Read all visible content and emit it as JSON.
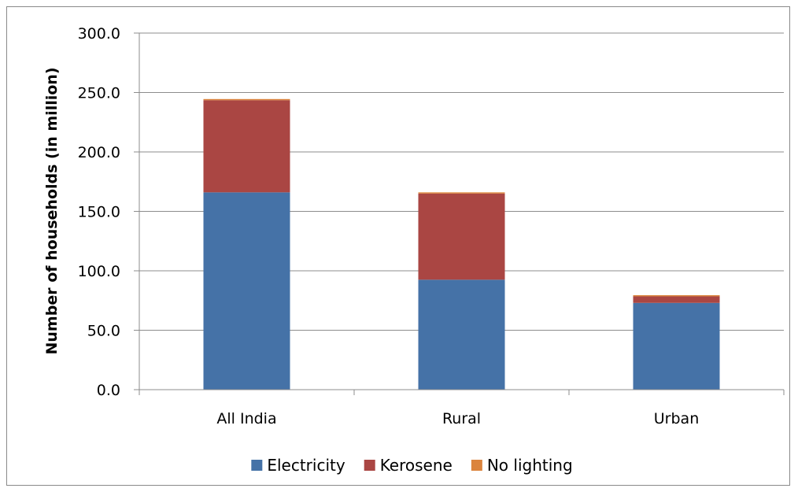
{
  "chart_data": {
    "type": "bar",
    "stacked": true,
    "categories": [
      "All India",
      "Rural",
      "Urban"
    ],
    "series": [
      {
        "name": "Electricity",
        "values": [
          166.0,
          92.5,
          73.0
        ],
        "color": "#4572A7"
      },
      {
        "name": "Kerosene",
        "values": [
          77.5,
          72.5,
          5.5
        ],
        "color": "#AA4643"
      },
      {
        "name": "No lighting",
        "values": [
          1.0,
          1.0,
          1.0
        ],
        "color": "#DB843D"
      }
    ],
    "ylabel": "Number of households (in million)",
    "ylim": [
      0,
      300
    ],
    "yticks": [
      0,
      50,
      100,
      150,
      200,
      250,
      300
    ],
    "ytick_labels": [
      "0.0",
      "50.0",
      "100.0",
      "150.0",
      "200.0",
      "250.0",
      "300.0"
    ],
    "grid": true,
    "legend_position": "bottom"
  },
  "colors": {
    "gridline": "#8c8c8c",
    "axis": "#8c8c8c",
    "frame": "#8a8a8a"
  }
}
